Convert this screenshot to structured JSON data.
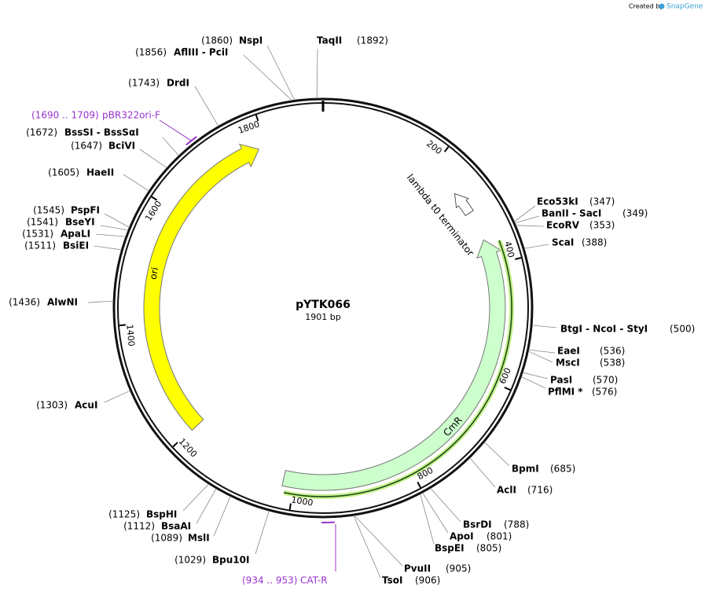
{
  "created_by": "Created by",
  "brand": "SnapGene",
  "plasmid": {
    "name": "pYTK066",
    "length": "1901 bp"
  },
  "features": [
    {
      "name": "ori"
    },
    {
      "name": "lambda t0 terminator"
    },
    {
      "name": "CmR"
    }
  ],
  "primers": [
    {
      "range": "(1690 .. 1709)",
      "name": "pBR322ori-F"
    },
    {
      "range": "(934 .. 953)",
      "name": "CAT-R"
    }
  ],
  "scale_ticks": [
    "200",
    "400",
    "600",
    "800",
    "1000",
    "1200",
    "1400",
    "1600",
    "1800"
  ],
  "sites": [
    {
      "name": "NspI",
      "position": "(1860)"
    },
    {
      "name": "AflIII - PciI",
      "position": "(1856)"
    },
    {
      "name": "DrdI",
      "position": "(1743)"
    },
    {
      "name": "BssSI - BssSαI",
      "position": "(1672)"
    },
    {
      "name": "BciVI",
      "position": "(1647)"
    },
    {
      "name": "HaeII",
      "position": "(1605)"
    },
    {
      "name": "PspFI",
      "position": "(1545)"
    },
    {
      "name": "BseYI",
      "position": "(1541)"
    },
    {
      "name": "ApaLI",
      "position": "(1531)"
    },
    {
      "name": "BsiEI",
      "position": "(1511)"
    },
    {
      "name": "AlwNI",
      "position": "(1436)"
    },
    {
      "name": "AcuI",
      "position": "(1303)"
    },
    {
      "name": "BspHI",
      "position": "(1125)"
    },
    {
      "name": "BsaAI",
      "position": "(1112)"
    },
    {
      "name": "MslI",
      "position": "(1089)"
    },
    {
      "name": "Bpu10I",
      "position": "(1029)"
    },
    {
      "name": "TaqII",
      "position": "(1892)"
    },
    {
      "name": "Eco53kI",
      "position": "(347)"
    },
    {
      "name": "BanII - SacI",
      "position": "(349)"
    },
    {
      "name": "EcoRV",
      "position": "(353)"
    },
    {
      "name": "ScaI",
      "position": "(388)"
    },
    {
      "name": "BtgI - NcoI - StyI",
      "position": "(500)"
    },
    {
      "name": "EaeI",
      "position": "(536)"
    },
    {
      "name": "MscI",
      "position": "(538)"
    },
    {
      "name": "PasI",
      "position": "(570)"
    },
    {
      "name": "PflMI *",
      "position": "(576)"
    },
    {
      "name": "BpmI",
      "position": "(685)"
    },
    {
      "name": "AclI",
      "position": "(716)"
    },
    {
      "name": "BsrDI",
      "position": "(788)"
    },
    {
      "name": "ApoI",
      "position": "(801)"
    },
    {
      "name": "BspEI",
      "position": "(805)"
    },
    {
      "name": "PvuII",
      "position": "(905)"
    },
    {
      "name": "TsoI",
      "position": "(906)"
    }
  ]
}
